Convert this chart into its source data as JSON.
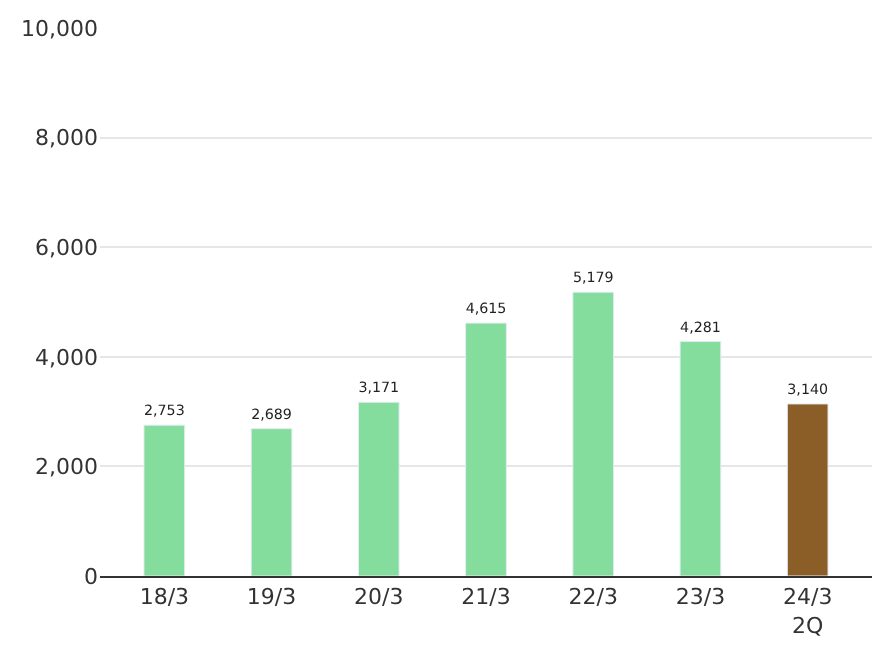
{
  "chart_data": {
    "type": "bar",
    "categories": [
      "18/3",
      "19/3",
      "20/3",
      "21/3",
      "22/3",
      "23/3",
      "24/3\n2Q"
    ],
    "values": [
      2753,
      2689,
      3171,
      4615,
      5179,
      4281,
      3140
    ],
    "colors": [
      "#84dd9c",
      "#84dd9c",
      "#84dd9c",
      "#84dd9c",
      "#84dd9c",
      "#84dd9c",
      "#8a5e26"
    ],
    "value_labels": [
      "2,753",
      "2,689",
      "3,171",
      "4,615",
      "5,179",
      "4,281",
      "3,140"
    ],
    "ylim": [
      0,
      10000
    ],
    "yticks": [
      0,
      {
        "value": 2000,
        "label": "2,000"
      },
      {
        "value": 4000,
        "label": "4,000"
      },
      {
        "value": 6000,
        "label": "6,000"
      },
      {
        "value": 8000,
        "label": "8,000"
      },
      {
        "value": 10000,
        "label": "10,000"
      }
    ],
    "grid": "y",
    "legend": false
  }
}
